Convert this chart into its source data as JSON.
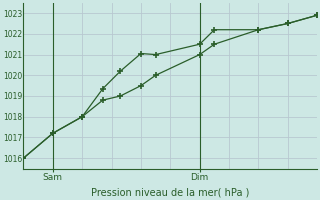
{
  "bg_color": "#cde8e4",
  "grid_color": "#b8c8d0",
  "line_color": "#2a5e2a",
  "ylim": [
    1015.5,
    1023.5
  ],
  "yticks": [
    1016,
    1017,
    1018,
    1019,
    1020,
    1021,
    1022,
    1023
  ],
  "xlim": [
    0,
    10
  ],
  "n_vert_grid": 10,
  "sam_x": 1.0,
  "dim_x": 6.0,
  "line1_x": [
    0,
    1.0,
    2.0,
    2.7,
    3.3,
    4.0,
    4.5,
    6.0,
    6.5,
    8.0,
    9.0,
    10.0
  ],
  "line1_y": [
    1016.0,
    1017.2,
    1018.0,
    1019.35,
    1020.2,
    1021.05,
    1021.0,
    1021.5,
    1022.2,
    1022.2,
    1022.5,
    1022.9
  ],
  "line2_x": [
    0,
    1.0,
    2.0,
    2.7,
    3.3,
    4.0,
    4.5,
    6.0,
    6.5,
    8.0,
    9.0,
    10.0
  ],
  "line2_y": [
    1016.0,
    1017.2,
    1018.0,
    1018.8,
    1019.0,
    1019.5,
    1020.0,
    1021.0,
    1021.5,
    1022.2,
    1022.5,
    1022.9
  ],
  "sam_label": "Sam",
  "dim_label": "Dim",
  "xlabel": "Pression niveau de la mer( hPa )"
}
